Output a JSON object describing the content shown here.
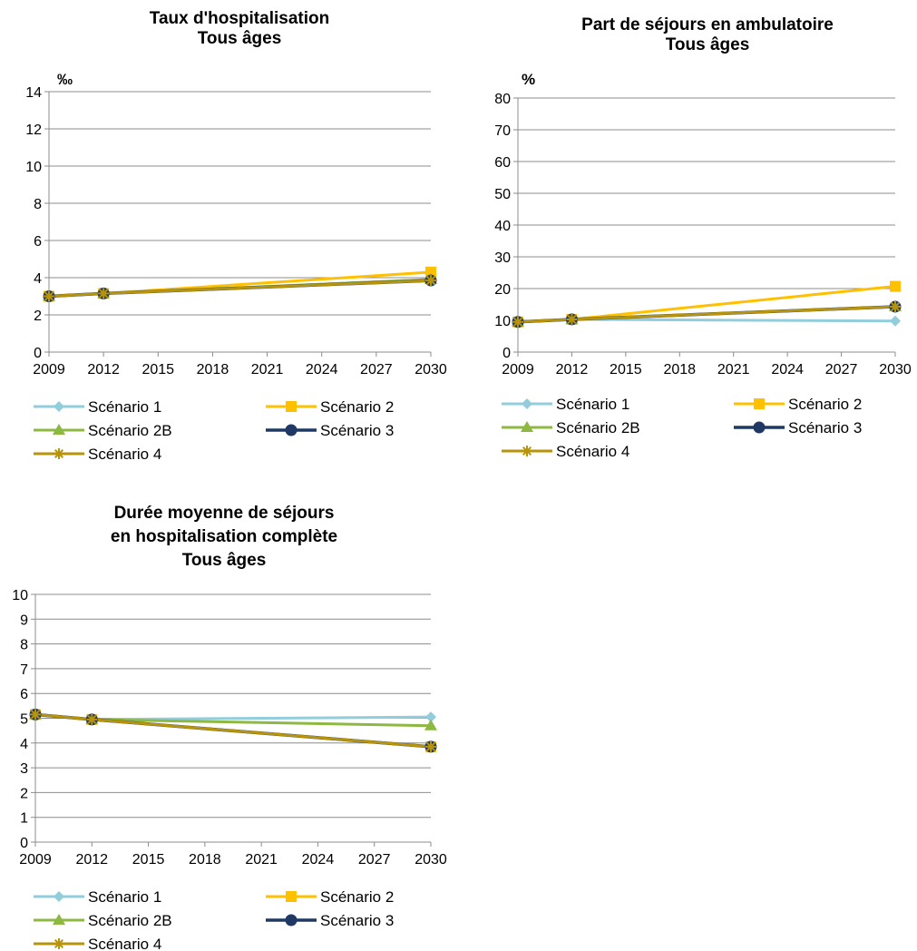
{
  "colors": {
    "scenario1": "#92CDDC",
    "scenario2": "#FFC000",
    "scenario2b": "#8DB842",
    "scenario3": "#1F3864",
    "scenario4": "#B8940A",
    "gridline": "#8C8C8C"
  },
  "legend": [
    "Scénario 1",
    "Scénario 2",
    "Scénario 2B",
    "Scénario 3",
    "Scénario 4"
  ],
  "chart_data": [
    {
      "type": "line",
      "title_lines": [
        "Taux d'hospitalisation",
        "Tous âges"
      ],
      "unit": "‰",
      "x": [
        2009,
        2012,
        2030
      ],
      "x_ticks": [
        "2009",
        "2012",
        "2015",
        "2018",
        "2021",
        "2024",
        "2027",
        "2030"
      ],
      "ylim": [
        0,
        14
      ],
      "y_ticks": [
        0,
        2,
        4,
        6,
        8,
        10,
        12,
        14
      ],
      "grid": true,
      "series": [
        {
          "name": "Scénario 1",
          "values": [
            3.0,
            3.15,
            3.9
          ]
        },
        {
          "name": "Scénario 2",
          "values": [
            3.0,
            3.15,
            4.3
          ]
        },
        {
          "name": "Scénario 2B",
          "values": [
            3.0,
            3.15,
            3.9
          ]
        },
        {
          "name": "Scénario 3",
          "values": [
            3.0,
            3.15,
            3.85
          ]
        },
        {
          "name": "Scénario 4",
          "values": [
            3.0,
            3.15,
            3.85
          ]
        }
      ]
    },
    {
      "type": "line",
      "title_lines": [
        "Part de séjours en ambulatoire",
        "Tous âges"
      ],
      "unit": "%",
      "x": [
        2009,
        2012,
        2030
      ],
      "x_ticks": [
        "2009",
        "2012",
        "2015",
        "2018",
        "2021",
        "2024",
        "2027",
        "2030"
      ],
      "ylim": [
        0,
        80
      ],
      "y_ticks": [
        0,
        10,
        20,
        30,
        40,
        50,
        60,
        70,
        80
      ],
      "grid": true,
      "series": [
        {
          "name": "Scénario 1",
          "values": [
            9.5,
            10.3,
            9.8
          ]
        },
        {
          "name": "Scénario 2",
          "values": [
            9.5,
            10.3,
            20.7
          ]
        },
        {
          "name": "Scénario 2B",
          "values": [
            9.5,
            10.3,
            14.3
          ]
        },
        {
          "name": "Scénario 3",
          "values": [
            9.5,
            10.3,
            14.3
          ]
        },
        {
          "name": "Scénario 4",
          "values": [
            9.5,
            10.3,
            14.3
          ]
        }
      ]
    },
    {
      "type": "line",
      "title_lines": [
        "Durée moyenne de séjours",
        "en hospitalisation complète",
        "Tous âges"
      ],
      "unit": "",
      "x": [
        2009,
        2012,
        2030
      ],
      "x_ticks": [
        "2009",
        "2012",
        "2015",
        "2018",
        "2021",
        "2024",
        "2027",
        "2030"
      ],
      "ylim": [
        0,
        10
      ],
      "y_ticks": [
        0,
        1,
        2,
        3,
        4,
        5,
        6,
        7,
        8,
        9,
        10
      ],
      "grid": true,
      "series": [
        {
          "name": "Scénario 1",
          "values": [
            5.15,
            4.95,
            5.05
          ]
        },
        {
          "name": "Scénario 2",
          "values": [
            5.15,
            4.95,
            3.85
          ]
        },
        {
          "name": "Scénario 2B",
          "values": [
            5.15,
            4.95,
            4.7
          ]
        },
        {
          "name": "Scénario 3",
          "values": [
            5.15,
            4.95,
            3.85
          ]
        },
        {
          "name": "Scénario 4",
          "values": [
            5.15,
            4.95,
            3.85
          ]
        }
      ]
    }
  ]
}
